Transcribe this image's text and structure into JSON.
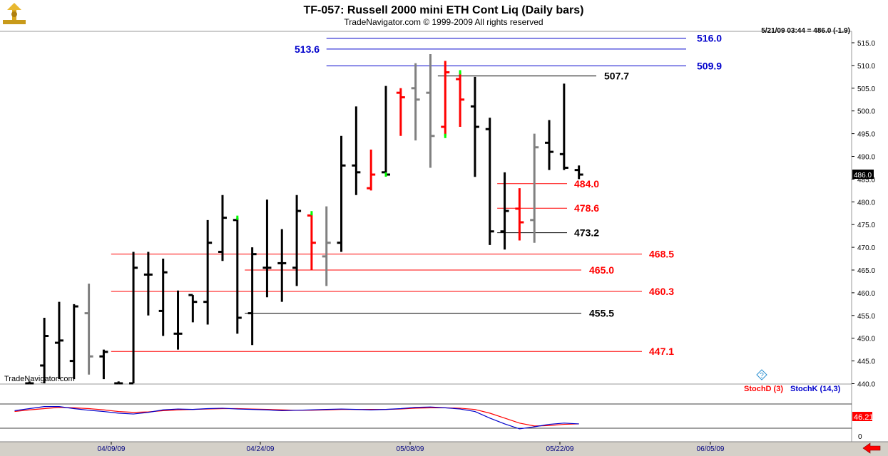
{
  "chart_data": {
    "type": "ohlc",
    "title": "TF-057:  Russell 2000 mini ETH Cont Liq  (Daily bars)",
    "subtitle": "TradeNavigator.com © 1999-2009 All rights reserved",
    "watermark": "TradeNavigator.com",
    "readout": "5/21/09 03:44 = 486.0 (-1.9)",
    "last_price": "486.0",
    "ylim": [
      437.5,
      517.5
    ],
    "yticks": [
      "515.0",
      "510.0",
      "505.0",
      "500.0",
      "495.0",
      "490.0",
      "485.0",
      "480.0",
      "475.0",
      "470.0",
      "465.0",
      "460.0",
      "455.0",
      "450.0",
      "445.0",
      "440.0"
    ],
    "x_labels": [
      "04/09/09",
      "04/24/09",
      "05/08/09",
      "05/22/09",
      "06/05/09"
    ],
    "colors": {
      "black": "#000000",
      "red": "#ff0000",
      "gray": "#808080",
      "green": "#00ff00",
      "blue": "#0000cc"
    },
    "bars": [
      {
        "x": 1,
        "h": 440.5,
        "l": 437.5,
        "o": 438.5,
        "c": 439.5,
        "color": "black"
      },
      {
        "x": 2,
        "h": 454.5,
        "l": 437.5,
        "o": 444,
        "c": 450.5,
        "color": "black"
      },
      {
        "x": 3,
        "h": 458,
        "l": 441,
        "o": 449,
        "c": 449.5,
        "color": "black"
      },
      {
        "x": 4,
        "h": 457.5,
        "l": 441,
        "o": 445,
        "c": 457,
        "color": "black"
      },
      {
        "x": 5,
        "h": 462,
        "l": 442,
        "o": 455.5,
        "c": 446,
        "color": "gray"
      },
      {
        "x": 6,
        "h": 447.5,
        "l": 441,
        "o": 446,
        "c": 447,
        "color": "black"
      },
      {
        "x": 7,
        "h": 440.5,
        "l": 437.5,
        "o": 438.5,
        "c": 440,
        "color": "black"
      },
      {
        "x": 8,
        "h": 469,
        "l": 437.5,
        "o": 439,
        "c": 465.5,
        "color": "black"
      },
      {
        "x": 9,
        "h": 469,
        "l": 455,
        "o": 464,
        "c": 464,
        "color": "black"
      },
      {
        "x": 10,
        "h": 467.5,
        "l": 450.5,
        "o": 456,
        "c": 464.5,
        "color": "black"
      },
      {
        "x": 11,
        "h": 460.5,
        "l": 447.5,
        "o": 451,
        "c": 451,
        "color": "black"
      },
      {
        "x": 12,
        "h": 459.5,
        "l": 453.5,
        "o": 459.5,
        "c": 458,
        "color": "black"
      },
      {
        "x": 13,
        "h": 476,
        "l": 453,
        "o": 458,
        "c": 471,
        "color": "black"
      },
      {
        "x": 14,
        "h": 481.5,
        "l": 467,
        "o": 469,
        "c": 476.5,
        "color": "black"
      },
      {
        "x": 15,
        "h": 476.5,
        "l": 451,
        "o": 476,
        "c": 454.5,
        "color": "black",
        "mark": 476.5
      },
      {
        "x": 16,
        "h": 470,
        "l": 448.5,
        "o": 455.5,
        "c": 468.5,
        "color": "black"
      },
      {
        "x": 17,
        "h": 480.5,
        "l": 459,
        "o": 465.5,
        "c": 465.5,
        "color": "black"
      },
      {
        "x": 18,
        "h": 474,
        "l": 458,
        "o": 466.5,
        "c": 466.5,
        "color": "black"
      },
      {
        "x": 19,
        "h": 481.5,
        "l": 461.5,
        "o": 465.5,
        "c": 478,
        "color": "black"
      },
      {
        "x": 20,
        "h": 477.5,
        "l": 465,
        "o": 477,
        "c": 471,
        "color": "red",
        "mark": 477.5
      },
      {
        "x": 21,
        "h": 479,
        "l": 461.5,
        "o": 468,
        "c": 471,
        "color": "gray"
      },
      {
        "x": 22,
        "h": 494.5,
        "l": 469,
        "o": 471,
        "c": 488,
        "color": "black"
      },
      {
        "x": 23,
        "h": 501,
        "l": 481.5,
        "o": 488,
        "c": 486.5,
        "color": "black"
      },
      {
        "x": 24,
        "h": 491.5,
        "l": 482.5,
        "o": 483,
        "c": 486,
        "color": "red"
      },
      {
        "x": 25,
        "h": 505.5,
        "l": 486,
        "o": 486.5,
        "c": 486,
        "color": "black",
        "mark": 486
      },
      {
        "x": 26,
        "h": 505,
        "l": 494.5,
        "o": 504,
        "c": 503,
        "color": "red"
      },
      {
        "x": 27,
        "h": 510.5,
        "l": 493.5,
        "o": 505,
        "c": 502.5,
        "color": "gray"
      },
      {
        "x": 28,
        "h": 512.5,
        "l": 487.5,
        "o": 504,
        "c": 494.5,
        "color": "gray"
      },
      {
        "x": 29,
        "h": 511,
        "l": 494.5,
        "o": 496.5,
        "c": 508.5,
        "color": "red",
        "mark": 494.5
      },
      {
        "x": 30,
        "h": 508.5,
        "l": 496.5,
        "o": 507,
        "c": 502.5,
        "color": "red",
        "mark": 508.5
      },
      {
        "x": 31,
        "h": 507.5,
        "l": 485.5,
        "o": 501,
        "c": 496.5,
        "color": "black"
      },
      {
        "x": 32,
        "h": 498.5,
        "l": 470.5,
        "o": 496,
        "c": 473.5,
        "color": "black"
      },
      {
        "x": 33,
        "h": 486.5,
        "l": 469.5,
        "o": 473.5,
        "c": 478,
        "color": "black"
      },
      {
        "x": 34,
        "h": 483,
        "l": 471.5,
        "o": 478.5,
        "c": 475.5,
        "color": "red"
      },
      {
        "x": 35,
        "h": 495,
        "l": 471,
        "o": 476,
        "c": 492,
        "color": "gray"
      },
      {
        "x": 36,
        "h": 498,
        "l": 487,
        "o": 493,
        "c": 491,
        "color": "black"
      },
      {
        "x": 37,
        "h": 506,
        "l": 487,
        "o": 490.5,
        "c": 487.5,
        "color": "black"
      },
      {
        "x": 38,
        "h": 488,
        "l": 485,
        "o": 487,
        "c": 486,
        "color": "black"
      }
    ],
    "levels": [
      {
        "value": 516.0,
        "label": "516.0",
        "color": "#0000cc",
        "from": 21
      },
      {
        "value": 513.6,
        "label": "513.6",
        "color": "#0000cc",
        "from": 21
      },
      {
        "value": 509.9,
        "label": "509.9",
        "color": "#0000cc",
        "from": 21
      },
      {
        "value": 507.7,
        "label": "507.7",
        "color": "#000000",
        "from": 28.5
      },
      {
        "value": 484.0,
        "label": "484.0",
        "color": "#ff0000",
        "from": 32.5
      },
      {
        "value": 478.6,
        "label": "478.6",
        "color": "#ff0000",
        "from": 32.5
      },
      {
        "value": 473.2,
        "label": "473.2",
        "color": "#000000",
        "from": 32.5
      },
      {
        "value": 468.5,
        "label": "468.5",
        "color": "#ff0000",
        "from": 6.5
      },
      {
        "value": 465.0,
        "label": "465.0",
        "color": "#ff0000",
        "from": 15.5
      },
      {
        "value": 460.3,
        "label": "460.3",
        "color": "#ff0000",
        "from": 6.5
      },
      {
        "value": 455.5,
        "label": "455.5",
        "color": "#000000",
        "from": 15.5
      },
      {
        "value": 447.1,
        "label": "447.1",
        "color": "#ff0000",
        "from": 6.5
      }
    ],
    "stochastic": {
      "labels": [
        "StochD (3)",
        "StochK (14,3)"
      ],
      "colors": [
        "#ff0000",
        "#0000cc"
      ],
      "last_value": "46.21",
      "tick_zero": "0",
      "ylim": [
        0,
        100
      ],
      "k": [
        70,
        75,
        80,
        80,
        75,
        71,
        68,
        64,
        62,
        66,
        72,
        74,
        73,
        75,
        76,
        74,
        73,
        72,
        70,
        71,
        72,
        73,
        74,
        73,
        72,
        73,
        75,
        78,
        79,
        77,
        74,
        68,
        52,
        38,
        26,
        31,
        37,
        40,
        38
      ],
      "d": [
        68,
        72,
        75,
        78,
        77,
        75,
        72,
        68,
        66,
        67,
        70,
        72,
        73,
        74,
        75,
        75,
        74,
        73,
        72,
        71,
        71,
        72,
        73,
        73,
        73,
        73,
        74,
        76,
        77,
        77,
        76,
        73,
        64,
        52,
        40,
        33,
        34,
        37,
        38
      ]
    }
  }
}
